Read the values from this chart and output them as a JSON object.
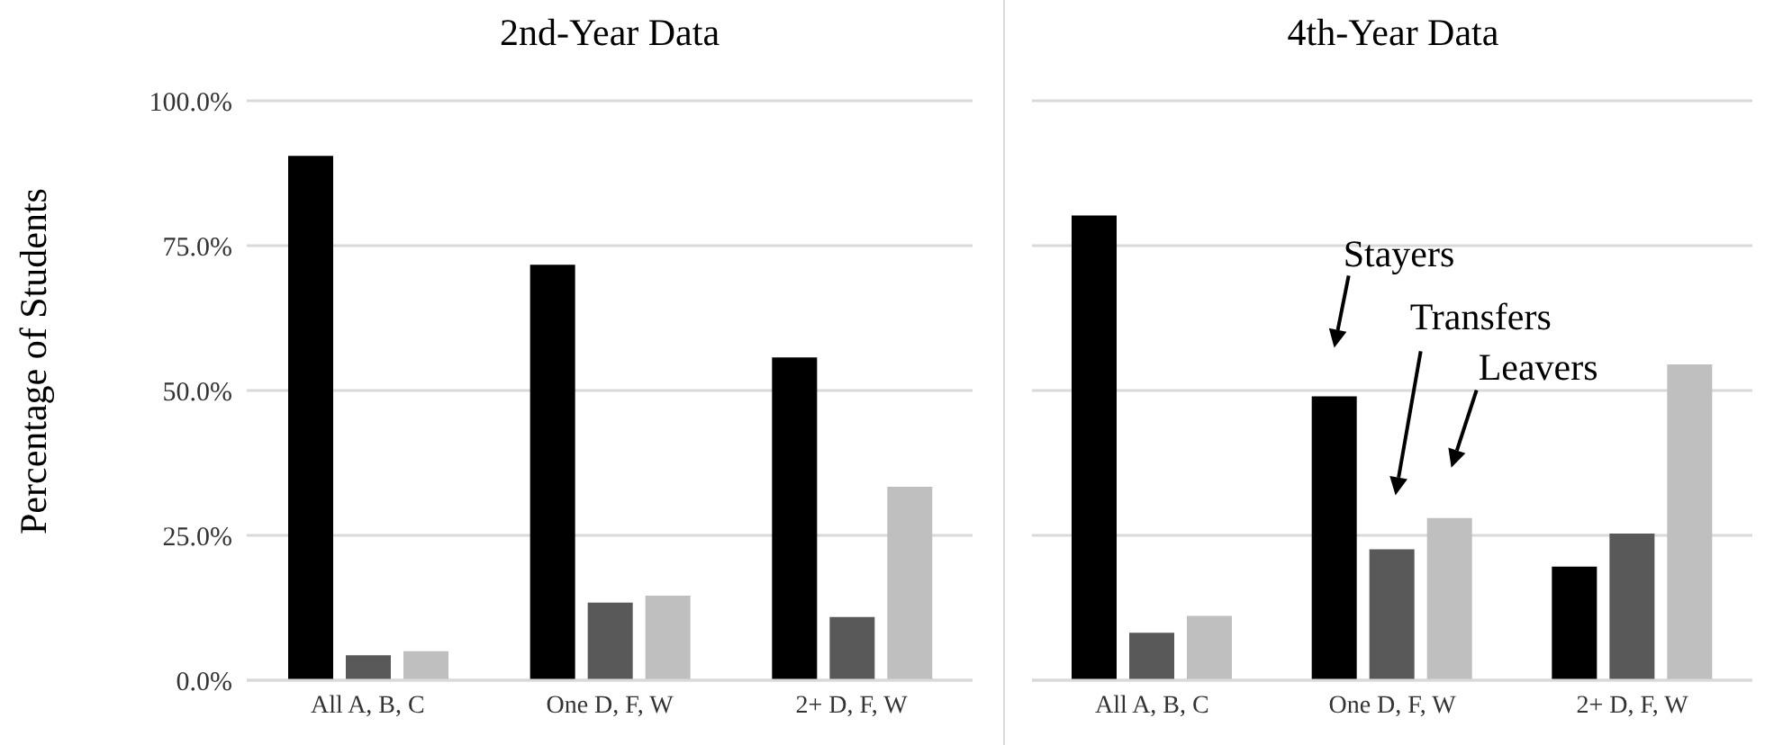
{
  "chart_data": [
    {
      "type": "bar",
      "title": "2nd-Year Data",
      "ylabel": "Percentage of Students",
      "categories": [
        "All A, B, C",
        "One D, F, W",
        "2+ D, F, W"
      ],
      "series": [
        {
          "color": "#000000",
          "values": [
            90.5,
            71.7,
            55.7
          ]
        },
        {
          "color": "#595959",
          "values": [
            4.3,
            13.4,
            10.9
          ]
        },
        {
          "color": "#bfbfbf",
          "values": [
            5.0,
            14.6,
            33.4
          ]
        }
      ],
      "ylim": [
        0,
        100
      ],
      "yticks": [
        {
          "value": 0,
          "label": "0.0%"
        },
        {
          "value": 25,
          "label": "25.0%"
        },
        {
          "value": 50,
          "label": "50.0%"
        },
        {
          "value": 75,
          "label": "75.0%"
        },
        {
          "value": 100,
          "label": "100.0%"
        }
      ],
      "grid": "y",
      "legend": false
    },
    {
      "type": "bar",
      "title": "4th-Year Data",
      "categories": [
        "All A, B, C",
        "One D, F, W",
        "2+ D, F, W"
      ],
      "series": [
        {
          "color": "#000000",
          "values": [
            80.2,
            49.0,
            19.6
          ]
        },
        {
          "color": "#595959",
          "values": [
            8.2,
            22.6,
            25.3
          ]
        },
        {
          "color": "#bfbfbf",
          "values": [
            11.1,
            28.0,
            54.5
          ]
        }
      ],
      "annotations": [
        "Stayers",
        "Transfers",
        "Leavers"
      ],
      "ylim": [
        0,
        100
      ],
      "yticks": [
        0,
        25,
        50,
        75,
        100
      ],
      "grid": "y",
      "legend": false,
      "tick_labels": "x"
    }
  ]
}
